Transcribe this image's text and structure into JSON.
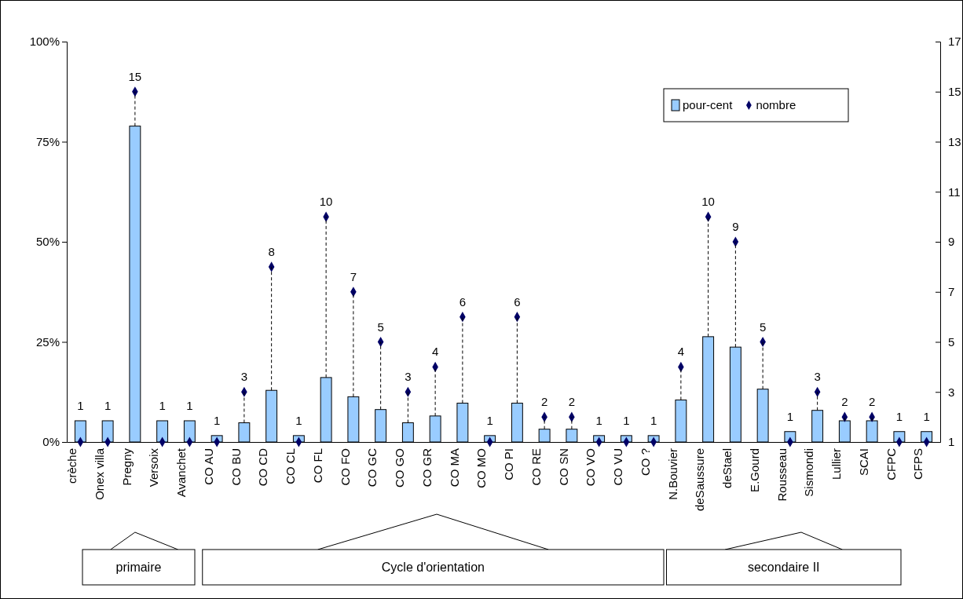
{
  "chart_data": {
    "type": "bar",
    "categories": [
      "crèche",
      "Onex villa",
      "Pregny",
      "Versoix",
      "Avanchet",
      "CO AU",
      "CO BU",
      "CO CD",
      "CO CL",
      "CO FL",
      "CO FO",
      "CO GC",
      "CO GO",
      "CO GR",
      "CO MA",
      "CO MO",
      "CO PI",
      "CO RE",
      "CO SN",
      "CO VO",
      "CO VU",
      "CO ?",
      "N.Bouvier",
      "deSaussure",
      "deStael",
      "E.Gourd",
      "Rousseau",
      "Sismondi",
      "Lullier",
      "SCAI",
      "CFPC",
      "CFPS"
    ],
    "series": [
      {
        "name": "pour-cent",
        "type": "bar",
        "color": "#99ccff",
        "values": [
          5.3,
          5.3,
          78.9,
          5.3,
          5.3,
          1.6,
          4.8,
          12.9,
          1.6,
          16.1,
          11.3,
          8.1,
          4.8,
          6.5,
          9.7,
          1.6,
          9.7,
          3.2,
          3.2,
          1.6,
          1.6,
          1.6,
          10.5,
          26.3,
          23.7,
          13.2,
          2.6,
          7.9,
          5.3,
          5.3,
          2.6,
          2.6
        ]
      },
      {
        "name": "nombre",
        "type": "scatter",
        "axis": "y2",
        "color": "#000066",
        "values": [
          1,
          1,
          15,
          1,
          1,
          1,
          3,
          8,
          1,
          10,
          7,
          5,
          3,
          4,
          6,
          1,
          6,
          2,
          2,
          1,
          1,
          1,
          4,
          10,
          9,
          5,
          1,
          3,
          2,
          2,
          1,
          1
        ],
        "value_labels": [
          "1",
          "1",
          "15",
          "1",
          "1",
          "1",
          "3",
          "8",
          "1",
          "10",
          "7",
          "5",
          "3",
          "4",
          "6",
          "1",
          "6",
          "2",
          "2",
          "1",
          "1",
          "1",
          "4",
          "10",
          "9",
          "5",
          "1",
          "3",
          "2",
          "2",
          "1",
          "1"
        ]
      }
    ],
    "ylim": [
      0,
      100
    ],
    "yticks": [
      {
        "value": 0,
        "label": "0%"
      },
      {
        "value": 25,
        "label": "25%"
      },
      {
        "value": 50,
        "label": "50%"
      },
      {
        "value": 75,
        "label": "75%"
      },
      {
        "value": 100,
        "label": "100%"
      }
    ],
    "y2lim": [
      1,
      17
    ],
    "y2ticks": [
      1,
      3,
      5,
      7,
      9,
      11,
      13,
      15,
      17
    ],
    "marker": "diamond",
    "legend": "top right",
    "grid": false,
    "annotations": [
      "primaire",
      "Cycle d'orientation",
      "secondaire II"
    ]
  }
}
